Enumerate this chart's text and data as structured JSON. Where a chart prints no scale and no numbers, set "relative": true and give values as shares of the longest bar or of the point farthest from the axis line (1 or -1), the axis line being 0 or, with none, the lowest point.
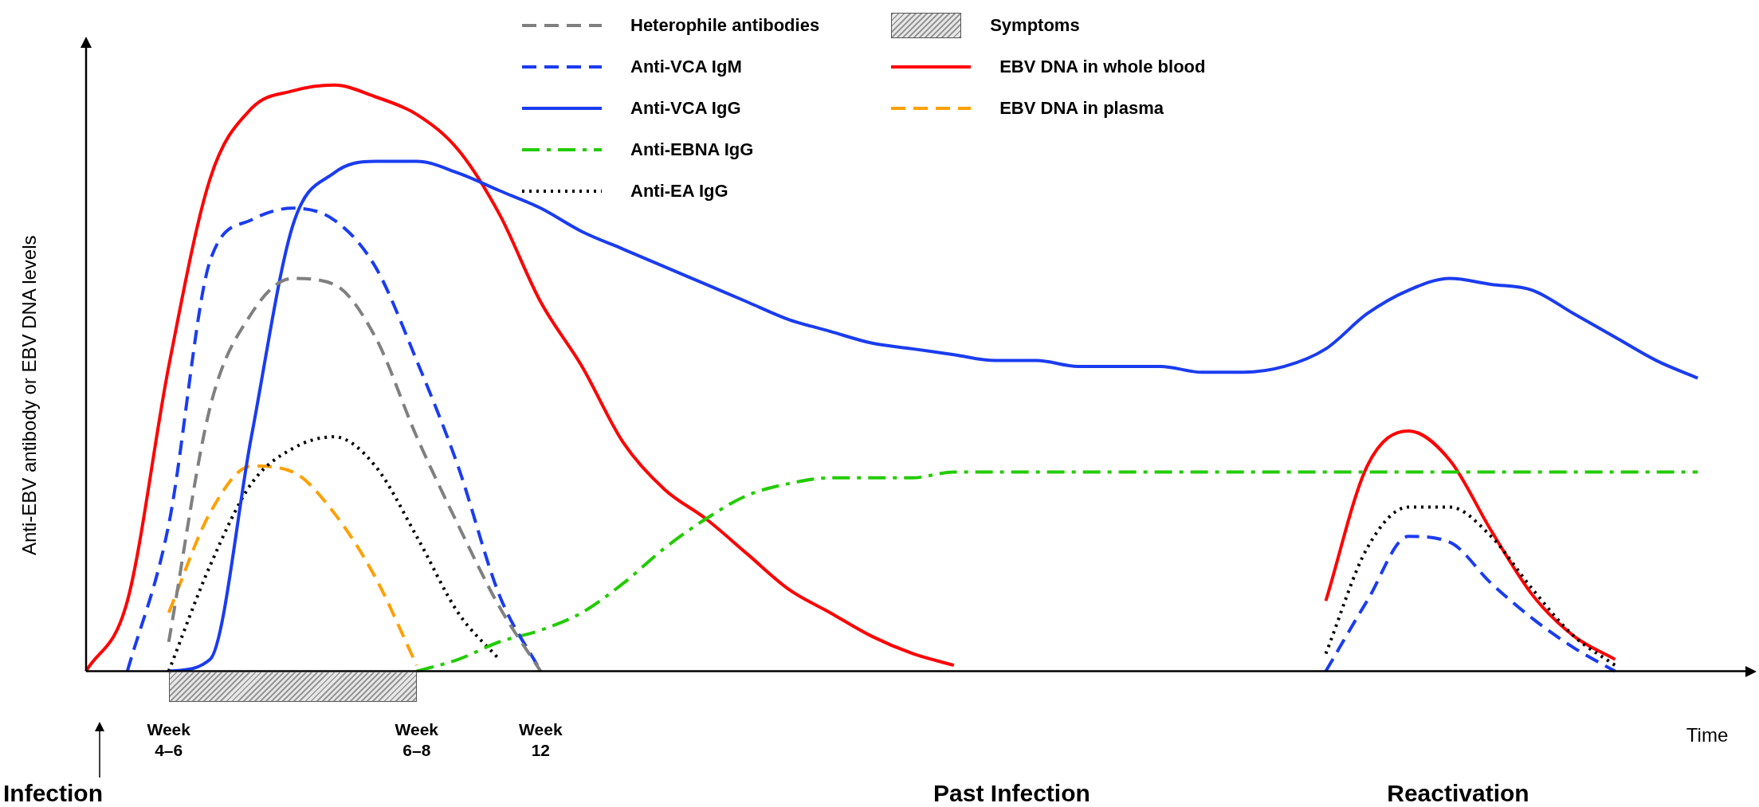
{
  "chart_data": {
    "type": "line",
    "relative": true,
    "xlabel": "Time",
    "ylabel": "Anti-EBV antibody or EBV DNA levels",
    "legend": "top",
    "grid": false,
    "marker": "none",
    "categories": [
      null,
      null,
      "Week 4–6",
      null,
      null,
      null,
      null,
      null,
      "Week 6–8",
      null,
      null,
      "Week 12",
      null,
      null,
      null,
      null,
      null,
      null,
      null,
      null,
      null,
      null,
      null,
      null,
      null,
      null,
      null,
      null,
      null,
      null,
      null,
      null,
      null,
      null,
      null,
      null,
      null,
      null,
      null,
      null,
      null
    ],
    "series": [
      {
        "name": "Heterophile antibodies",
        "color": "#808080",
        "line_style": "dashed",
        "values": [
          null,
          null,
          0.05,
          0.45,
          0.61,
          0.67,
          0.66,
          0.57,
          0.4,
          0.25,
          0.11,
          0,
          null,
          null,
          null,
          null,
          null,
          null,
          null,
          null,
          null,
          null,
          null,
          null,
          null,
          null,
          null,
          null,
          null,
          null,
          null,
          null,
          null,
          null,
          null,
          null,
          null,
          null,
          null,
          null,
          null
        ]
      },
      {
        "name": "Anti-VCA IgM",
        "color": "#1a3cf0",
        "line_style": "dashed",
        "values": [
          null,
          0,
          0.25,
          0.7,
          0.77,
          0.79,
          0.77,
          0.69,
          0.53,
          0.35,
          0.13,
          0,
          null,
          null,
          null,
          null,
          null,
          null,
          null,
          null,
          null,
          null,
          null,
          null,
          null,
          null,
          null,
          null,
          null,
          null,
          0,
          0.12,
          0.23,
          0.22,
          0.15,
          0.09,
          0.04,
          0,
          null,
          null,
          null
        ]
      },
      {
        "name": "Anti-VCA IgG",
        "color": "#1a3cf0",
        "line_style": "solid",
        "values": [
          null,
          null,
          0,
          0.02,
          0.4,
          0.76,
          0.85,
          0.87,
          0.87,
          0.85,
          0.82,
          0.79,
          0.75,
          0.72,
          0.69,
          0.66,
          0.63,
          0.6,
          0.58,
          0.56,
          0.55,
          0.54,
          0.53,
          0.53,
          0.52,
          0.52,
          0.52,
          0.51,
          0.51,
          0.52,
          0.55,
          0.61,
          0.65,
          0.67,
          0.66,
          0.65,
          0.61,
          0.57,
          0.53,
          0.5,
          null
        ]
      },
      {
        "name": "Anti-EBNA IgG",
        "color": "#22cc00",
        "line_style": "dashdot",
        "values": [
          null,
          null,
          null,
          null,
          null,
          null,
          null,
          null,
          0,
          0.02,
          0.05,
          0.07,
          0.1,
          0.15,
          0.21,
          0.26,
          0.3,
          0.32,
          0.33,
          0.33,
          0.33,
          0.34,
          0.34,
          0.34,
          0.34,
          0.34,
          0.34,
          0.34,
          0.34,
          0.34,
          0.34,
          0.34,
          0.34,
          0.34,
          0.34,
          0.34,
          0.34,
          0.34,
          0.34,
          0.34,
          null
        ]
      },
      {
        "name": "Anti-EA IgG",
        "color": "#000000",
        "line_style": "dotted",
        "values": [
          null,
          null,
          0,
          0.18,
          0.32,
          0.38,
          0.4,
          0.35,
          0.23,
          0.1,
          0.02,
          null,
          null,
          null,
          null,
          null,
          null,
          null,
          null,
          null,
          null,
          null,
          null,
          null,
          null,
          null,
          null,
          null,
          null,
          null,
          0.03,
          0.21,
          0.28,
          0.28,
          0.23,
          0.14,
          0.06,
          0.01,
          null,
          null,
          null
        ]
      },
      {
        "name": "EBV DNA in whole blood",
        "color": "#ff0000",
        "line_style": "solid",
        "values": [
          0,
          0.12,
          0.52,
          0.84,
          0.96,
          0.99,
          1,
          0.98,
          0.95,
          0.89,
          0.78,
          0.63,
          0.52,
          0.39,
          0.31,
          0.26,
          0.2,
          0.14,
          0.1,
          0.06,
          0.03,
          0.01,
          null,
          null,
          null,
          null,
          null,
          null,
          null,
          null,
          0.12,
          0.35,
          0.41,
          0.36,
          0.24,
          0.13,
          0.06,
          0.02,
          null,
          null,
          null
        ]
      },
      {
        "name": "EBV DNA in plasma",
        "color": "#ffa000",
        "line_style": "dashed",
        "values": [
          null,
          null,
          0.1,
          0.27,
          0.35,
          0.34,
          0.27,
          0.16,
          0.01,
          null,
          null,
          null,
          null,
          null,
          null,
          null,
          null,
          null,
          null,
          null,
          null,
          null,
          null,
          null,
          null,
          null,
          null,
          null,
          null,
          null,
          null,
          null,
          null,
          null,
          null,
          null,
          null,
          null,
          null,
          null,
          null
        ]
      }
    ],
    "annotations": [
      "Symptoms",
      "Infection",
      "Past Infection",
      "Reactivation"
    ]
  }
}
